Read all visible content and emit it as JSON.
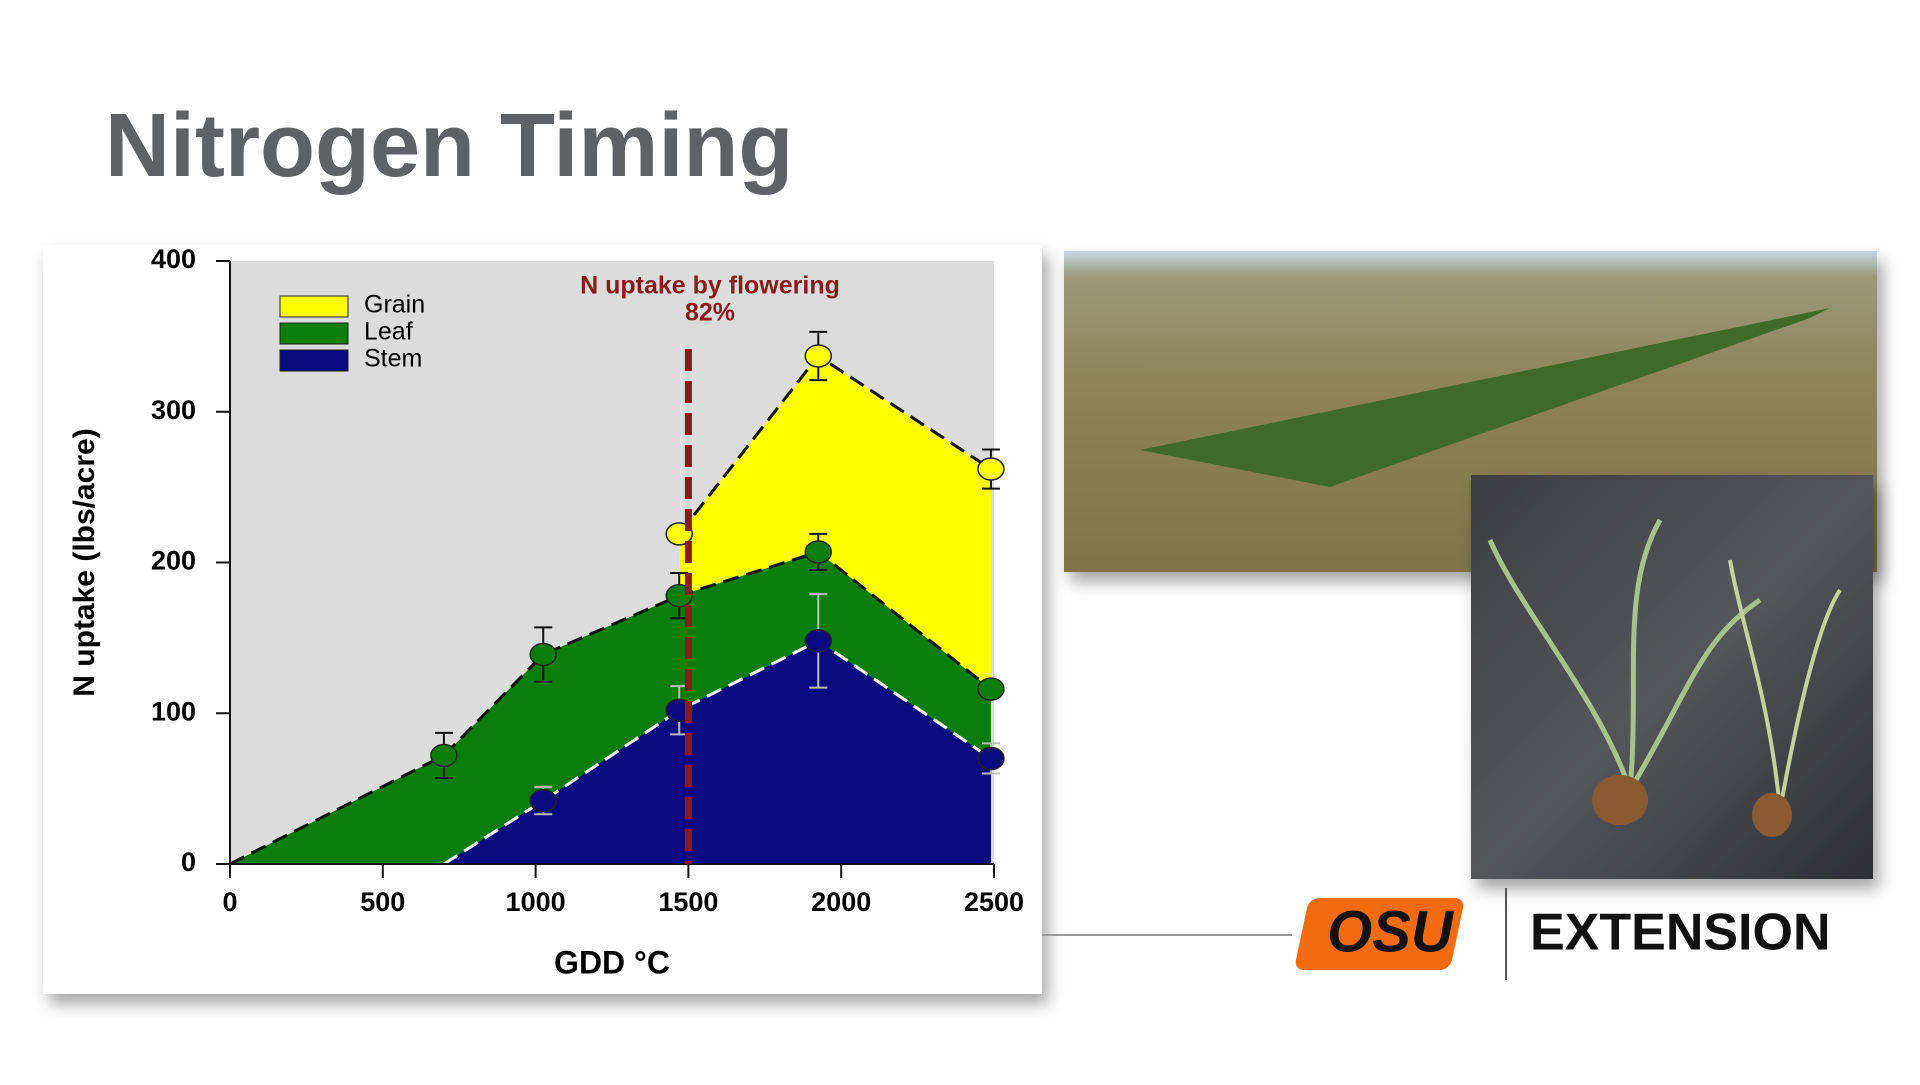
{
  "header": {
    "title": "Nitrogen Timing"
  },
  "chart_data": {
    "type": "area",
    "ylabel": "N uptake (lbs/acre)",
    "xlabel": "GDD °C",
    "annotation": {
      "text": "N uptake by flowering",
      "value_text": "82%",
      "x": 1500,
      "color": "#8b1a1a"
    },
    "xlim": [
      0,
      2500
    ],
    "xticks": [
      0,
      500,
      1000,
      1500,
      2000,
      2500
    ],
    "ylim": [
      0,
      400
    ],
    "yticks": [
      0,
      100,
      200,
      300,
      400
    ],
    "legend": "top-left",
    "series": [
      {
        "name": "Grain",
        "color": "#ffff00",
        "outline": "#111111",
        "x": [
          1470,
          1925,
          2490
        ],
        "values": [
          219,
          337,
          262
        ],
        "errors": [
          0,
          16,
          13
        ]
      },
      {
        "name": "Leaf",
        "color": "#0b7d0b",
        "outline": "#111111",
        "x": [
          0,
          700,
          1025,
          1470,
          1925,
          2490
        ],
        "values": [
          0,
          72,
          139,
          178,
          207,
          116
        ],
        "errors": [
          null,
          15,
          18,
          15,
          12,
          4
        ]
      },
      {
        "name": "Stem",
        "color": "#0b0b80",
        "outline": "#ffffff",
        "x": [
          700,
          1025,
          1470,
          1925,
          2490
        ],
        "values": [
          0,
          42,
          102,
          148,
          70
        ],
        "errors": [
          null,
          9,
          16,
          31,
          10
        ]
      }
    ]
  },
  "logo": {
    "mark": "OSU",
    "text": "EXTENSION"
  }
}
